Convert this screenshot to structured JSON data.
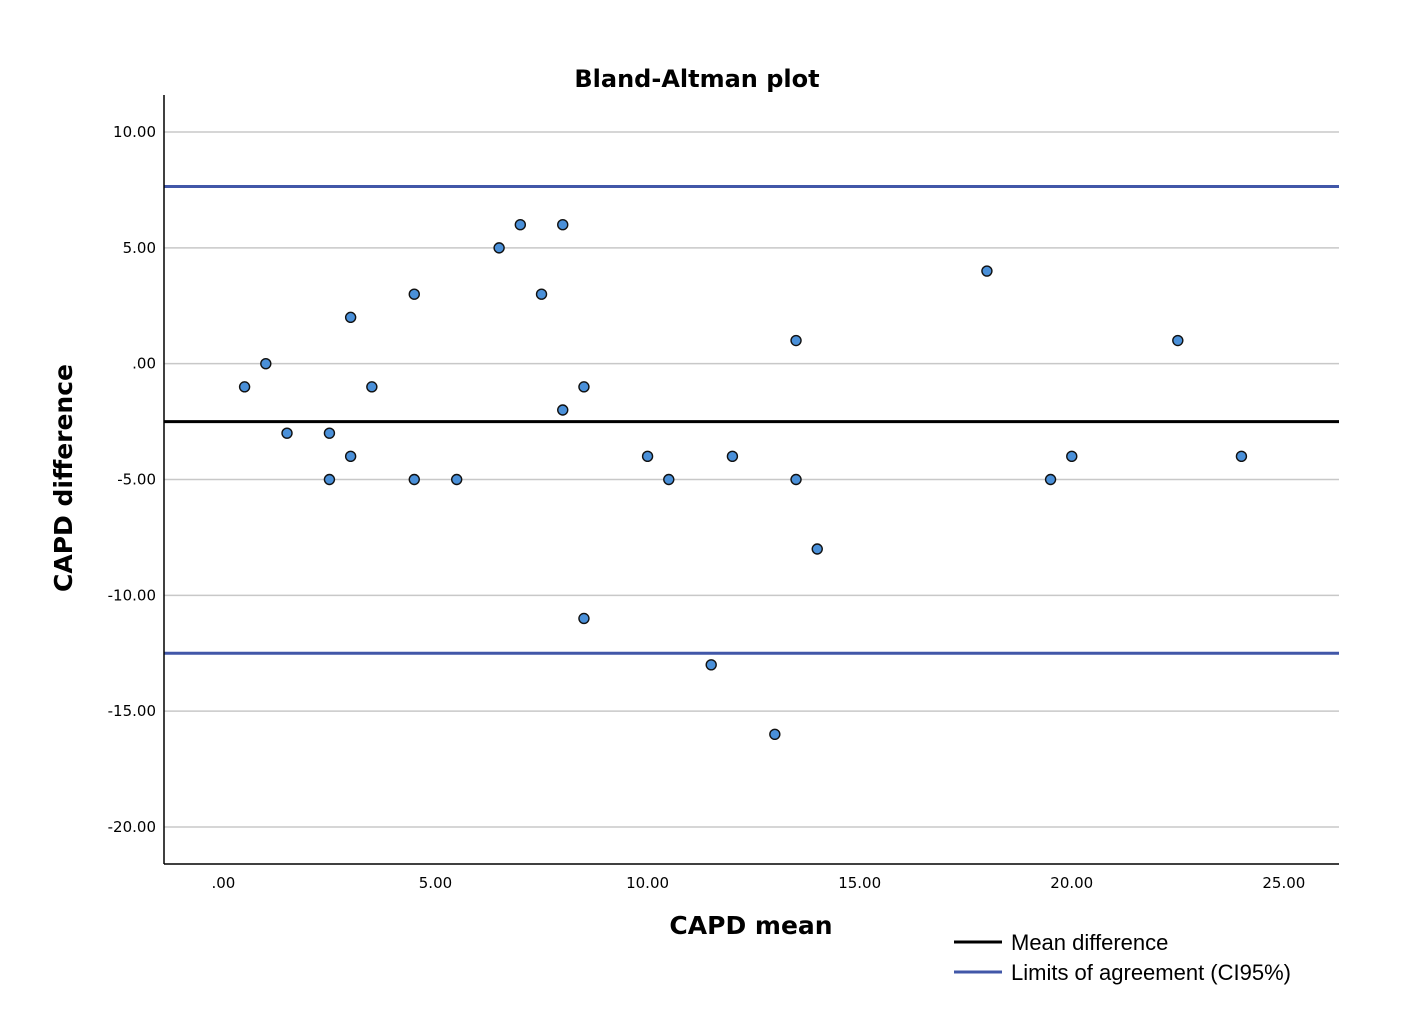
{
  "chart_data": {
    "type": "scatter",
    "title": "Bland-Altman plot",
    "xlabel": "CAPD mean",
    "ylabel": "CAPD difference",
    "xlim": [
      -1.4,
      26.3
    ],
    "ylim": [
      -21.6,
      11.6
    ],
    "xticks": [
      0,
      5,
      10,
      15,
      20,
      25
    ],
    "xtick_labels": [
      ".00",
      "5.00",
      "10.00",
      "15.00",
      "20.00",
      "25.00"
    ],
    "yticks": [
      10,
      5,
      0,
      -5,
      -10,
      -15,
      -20
    ],
    "ytick_labels": [
      "10.00",
      "5.00",
      ".00",
      "-5.00",
      "-10.00",
      "-15.00",
      "-20.00"
    ],
    "grid": "horizontal",
    "series": [
      {
        "type": "scatter",
        "color": "#4a90d9",
        "points": [
          {
            "x": 0.5,
            "y": -1
          },
          {
            "x": 1.0,
            "y": 0
          },
          {
            "x": 1.5,
            "y": -3
          },
          {
            "x": 2.5,
            "y": -3
          },
          {
            "x": 2.5,
            "y": -5
          },
          {
            "x": 3.0,
            "y": 2
          },
          {
            "x": 3.0,
            "y": -4
          },
          {
            "x": 3.5,
            "y": -1
          },
          {
            "x": 4.5,
            "y": 3
          },
          {
            "x": 4.5,
            "y": -5
          },
          {
            "x": 5.5,
            "y": -5
          },
          {
            "x": 6.5,
            "y": 5
          },
          {
            "x": 7.0,
            "y": 6
          },
          {
            "x": 7.5,
            "y": 3
          },
          {
            "x": 8.0,
            "y": 6
          },
          {
            "x": 8.0,
            "y": -2
          },
          {
            "x": 8.5,
            "y": -1
          },
          {
            "x": 8.5,
            "y": -11
          },
          {
            "x": 10.0,
            "y": -4
          },
          {
            "x": 10.5,
            "y": -5
          },
          {
            "x": 11.5,
            "y": -13
          },
          {
            "x": 12.0,
            "y": -4
          },
          {
            "x": 13.0,
            "y": -16
          },
          {
            "x": 13.5,
            "y": 1
          },
          {
            "x": 13.5,
            "y": -5
          },
          {
            "x": 14.0,
            "y": -8
          },
          {
            "x": 18.0,
            "y": 4
          },
          {
            "x": 19.5,
            "y": -5
          },
          {
            "x": 20.0,
            "y": -4
          },
          {
            "x": 22.5,
            "y": 1
          },
          {
            "x": 24.0,
            "y": -4
          }
        ]
      }
    ],
    "reference_lines": [
      {
        "name": "Mean difference",
        "y": -2.5,
        "color": "#000000"
      },
      {
        "name": "Limits of agreement (CI95%)",
        "y": 7.65,
        "color": "#4157a8"
      },
      {
        "name": "Limits of agreement (CI95%)",
        "y": -12.5,
        "color": "#4157a8"
      }
    ],
    "legend": {
      "position": "bottom-right",
      "entries": [
        {
          "label": "Mean difference",
          "color": "#000000"
        },
        {
          "label": "Limits of agreement (CI95%)",
          "color": "#4157a8"
        }
      ]
    }
  }
}
